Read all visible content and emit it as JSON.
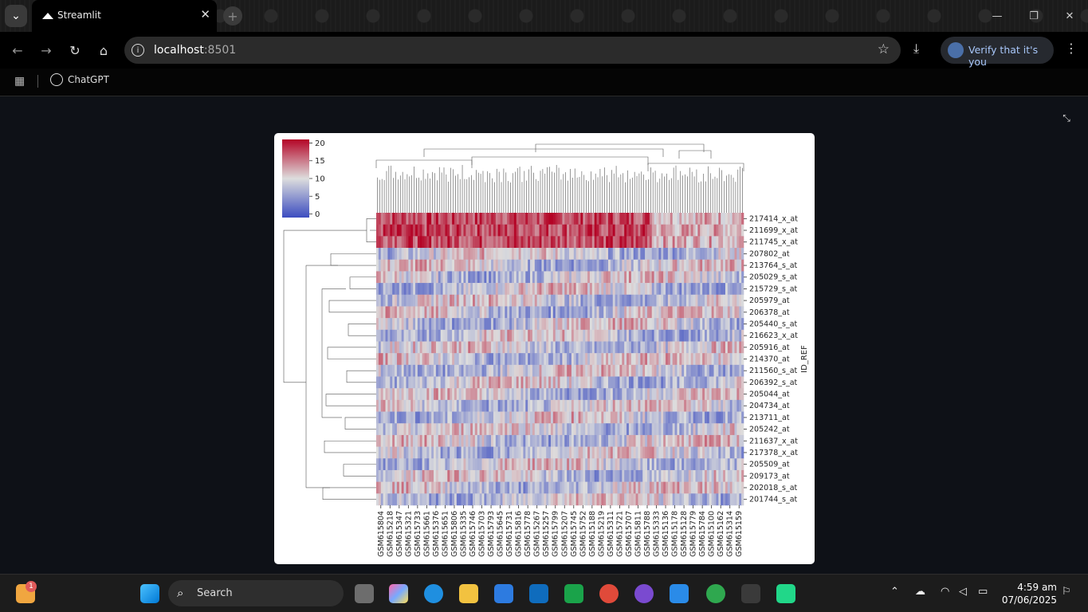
{
  "browser": {
    "tab_title": "Streamlit",
    "url_host": "localhost",
    "url_port": ":8501",
    "verify_label": "Verify that it's you",
    "bookmark_label": "ChatGPT"
  },
  "chart_data": {
    "type": "heatmap",
    "colormap": "coolwarm",
    "colorbar_ticks": [
      0,
      5,
      10,
      15,
      20
    ],
    "colorbar_range": [
      -1,
      21
    ],
    "ylabel": "ID_REF",
    "row_labels": [
      "217414_x_at",
      "211699_x_at",
      "211745_x_at",
      "207802_at",
      "213764_s_at",
      "205029_s_at",
      "215729_s_at",
      "205979_at",
      "206378_at",
      "205440_s_at",
      "216623_x_at",
      "205916_at",
      "214370_at",
      "211560_s_at",
      "206392_s_at",
      "205044_at",
      "204734_at",
      "213711_at",
      "205242_at",
      "211637_x_at",
      "217378_x_at",
      "205509_at",
      "209173_at",
      "202018_s_at",
      "201744_s_at"
    ],
    "col_labels": [
      "GSM615804",
      "GSM615218",
      "GSM615347",
      "GSM615321",
      "GSM615733",
      "GSM615661",
      "GSM615376",
      "GSM615651",
      "GSM615806",
      "GSM615335",
      "GSM615746",
      "GSM615703",
      "GSM615793",
      "GSM615645",
      "GSM615731",
      "GSM615816",
      "GSM615778",
      "GSM615267",
      "GSM615257",
      "GSM615799",
      "GSM615207",
      "GSM615745",
      "GSM615752",
      "GSM615188",
      "GSM615219",
      "GSM615311",
      "GSM615721",
      "GSM615707",
      "GSM615811",
      "GSM615788",
      "GSM615333",
      "GSM615136",
      "GSM615178",
      "GSM615128",
      "GSM615779",
      "GSM615784",
      "GSM615100",
      "GSM615162",
      "GSM615314",
      "GSM615159"
    ]
  },
  "taskbar": {
    "search_label": "Search",
    "notif_count": "1",
    "time": "4:59 am",
    "date": "07/06/2025"
  }
}
